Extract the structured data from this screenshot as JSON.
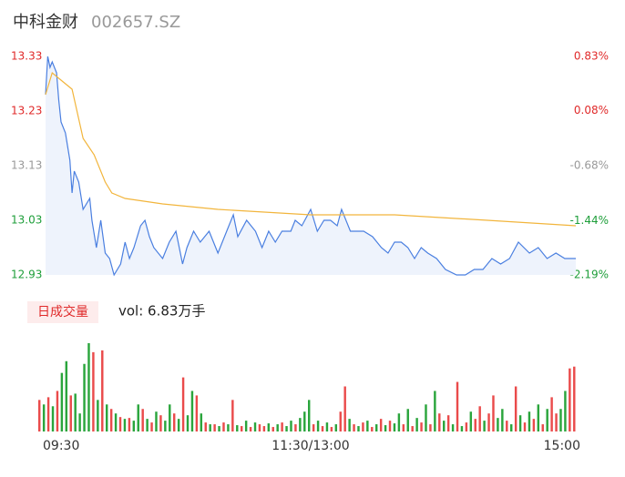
{
  "header": {
    "title": "中科金财",
    "code": "002657.SZ"
  },
  "chart_data": [
    {
      "type": "line",
      "ylim": [
        12.93,
        13.33
      ],
      "yticks": [
        12.93,
        13.03,
        13.13,
        13.23,
        13.33
      ],
      "ytick_colors": [
        "#1e9e3a",
        "#1e9e3a",
        "#999999",
        "#e02a2a",
        "#e02a2a"
      ],
      "y2lim": [
        -2.19,
        0.83
      ],
      "y2ticks": [
        {
          "value": -2.19,
          "label": "-2.19%"
        },
        {
          "value": -1.44,
          "label": "-1.44%"
        },
        {
          "value": -0.68,
          "label": "-0.68%"
        },
        {
          "value": 0.08,
          "label": "0.08%"
        },
        {
          "value": 0.83,
          "label": "0.83%"
        }
      ],
      "y2tick_colors": [
        "#1e9e3a",
        "#1e9e3a",
        "#999999",
        "#e02a2a",
        "#e02a2a"
      ],
      "xlim": [
        0,
        240
      ],
      "area_color": "#eef3fc",
      "series": [
        {
          "color": "#4a7fe0",
          "x": [
            0,
            1,
            2,
            3,
            5,
            6,
            7,
            9,
            11,
            12,
            13,
            15,
            17,
            20,
            21,
            23,
            25,
            27,
            29,
            31,
            34,
            36,
            38,
            40,
            43,
            45,
            47,
            49,
            53,
            56,
            59,
            62,
            64,
            67,
            70,
            74,
            78,
            82,
            85,
            87,
            91,
            95,
            98,
            101,
            104,
            107,
            111,
            113,
            116,
            120,
            123,
            126,
            129,
            132,
            134,
            138,
            141,
            144,
            148,
            152,
            155,
            158,
            161,
            164,
            167,
            170,
            173,
            177,
            181,
            186,
            190,
            194,
            198,
            202,
            206,
            210,
            214,
            219,
            223,
            227,
            231,
            235,
            240
          ],
          "values": [
            13.26,
            13.33,
            13.31,
            13.32,
            13.3,
            13.25,
            13.21,
            13.19,
            13.14,
            13.08,
            13.12,
            13.1,
            13.05,
            13.07,
            13.03,
            12.98,
            13.03,
            12.97,
            12.96,
            12.93,
            12.95,
            12.99,
            12.96,
            12.98,
            13.02,
            13.03,
            13.0,
            12.98,
            12.96,
            12.99,
            13.01,
            12.95,
            12.98,
            13.01,
            12.99,
            13.01,
            12.97,
            13.01,
            13.04,
            13.0,
            13.03,
            13.01,
            12.98,
            13.01,
            12.99,
            13.01,
            13.01,
            13.03,
            13.02,
            13.05,
            13.01,
            13.03,
            13.03,
            13.02,
            13.05,
            13.01,
            13.01,
            13.01,
            13.0,
            12.98,
            12.97,
            12.99,
            12.99,
            12.98,
            12.96,
            12.98,
            12.97,
            12.96,
            12.94,
            12.93,
            12.93,
            12.94,
            12.94,
            12.96,
            12.95,
            12.96,
            12.99,
            12.97,
            12.98,
            12.96,
            12.97,
            12.96,
            12.96
          ]
        },
        {
          "color": "#f2b53c",
          "x": [
            0,
            3,
            6,
            12,
            17,
            22,
            27,
            30,
            36,
            53,
            78,
            120,
            158,
            200,
            240
          ],
          "values": [
            13.26,
            13.3,
            13.29,
            13.27,
            13.18,
            13.15,
            13.1,
            13.08,
            13.07,
            13.06,
            13.05,
            13.04,
            13.04,
            13.03,
            13.02
          ]
        }
      ]
    },
    {
      "type": "bar",
      "label": "日成交量",
      "summary": "vol: 6.83万手",
      "ylim": [
        0,
        100
      ],
      "xlim": [
        0,
        240
      ],
      "xticks": [
        {
          "value": 0,
          "label": "09:30"
        },
        {
          "value": 120,
          "label": "11:30/13:00"
        },
        {
          "value": 240,
          "label": "15:00"
        }
      ],
      "up_color": "#ea4b4b",
      "down_color": "#2aa53c",
      "values": [
        35,
        30,
        38,
        28,
        45,
        65,
        78,
        40,
        42,
        20,
        75,
        98,
        88,
        35,
        90,
        30,
        25,
        20,
        16,
        14,
        15,
        12,
        30,
        25,
        14,
        10,
        22,
        18,
        12,
        30,
        20,
        14,
        60,
        18,
        45,
        40,
        20,
        10,
        8,
        8,
        6,
        10,
        8,
        35,
        7,
        6,
        12,
        5,
        10,
        8,
        6,
        9,
        5,
        8,
        10,
        6,
        12,
        8,
        15,
        22,
        35,
        8,
        12,
        6,
        10,
        5,
        8,
        22,
        50,
        14,
        8,
        6,
        10,
        12,
        5,
        8,
        14,
        7,
        12,
        9,
        20,
        8,
        25,
        6,
        15,
        10,
        30,
        8,
        45,
        20,
        12,
        18,
        8,
        55,
        6,
        10,
        22,
        14,
        28,
        12,
        20,
        40,
        15,
        25,
        12,
        8,
        50,
        18,
        10,
        22,
        14,
        30,
        8,
        25,
        38,
        20,
        25,
        45,
        70,
        72
      ],
      "up": [
        true,
        false,
        true,
        false,
        true,
        false,
        false,
        true,
        false,
        false,
        false,
        false,
        true,
        false,
        true,
        false,
        true,
        false,
        true,
        false,
        true,
        false,
        false,
        true,
        false,
        true,
        false,
        true,
        false,
        false,
        true,
        false,
        true,
        false,
        false,
        true,
        false,
        true,
        false,
        true,
        false,
        true,
        false,
        true,
        false,
        true,
        false,
        true,
        false,
        true,
        true,
        false,
        true,
        false,
        true,
        false,
        false,
        true,
        false,
        false,
        false,
        true,
        false,
        true,
        false,
        true,
        false,
        true,
        true,
        false,
        true,
        false,
        true,
        false,
        true,
        false,
        true,
        false,
        true,
        false,
        false,
        true,
        false,
        true,
        false,
        true,
        false,
        true,
        false,
        true,
        false,
        true,
        false,
        true,
        false,
        true,
        false,
        true,
        true,
        false,
        true,
        true,
        false,
        false,
        true,
        false,
        true,
        false,
        true,
        false,
        true,
        false,
        true,
        false,
        true,
        true,
        false,
        false,
        true,
        true
      ]
    }
  ]
}
